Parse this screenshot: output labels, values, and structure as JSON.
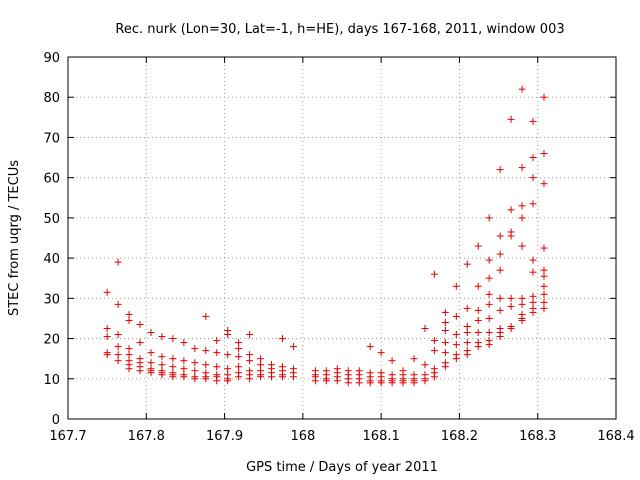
{
  "chart_data": {
    "type": "scatter",
    "title": "Rec. nurk (Lon=30, Lat=-1, h=HE), days 167-168, 2011, window 003",
    "xlabel": "GPS time / Days of year 2011",
    "ylabel": "STEC from uqrg / TECUs",
    "xlim": [
      167.7,
      168.4
    ],
    "ylim": [
      0,
      90
    ],
    "xticks": [
      "167.7",
      "167.8",
      "167.9",
      "168",
      "168.1",
      "168.2",
      "168.3",
      "168.4"
    ],
    "yticks": [
      "0",
      "10",
      "20",
      "30",
      "40",
      "50",
      "60",
      "70",
      "80",
      "90"
    ],
    "xtick_values": [
      167.7,
      167.8,
      167.9,
      168.0,
      168.1,
      168.2,
      168.3,
      168.4
    ],
    "ytick_values": [
      0,
      10,
      20,
      30,
      40,
      50,
      60,
      70,
      80,
      90
    ],
    "grid": true,
    "legend": false,
    "marker": "plus",
    "marker_color": "#e00000",
    "points": [
      [
        167.75,
        31.5
      ],
      [
        167.75,
        22.5
      ],
      [
        167.75,
        20.5
      ],
      [
        167.75,
        16.5
      ],
      [
        167.75,
        16
      ],
      [
        167.764,
        39
      ],
      [
        167.764,
        28.5
      ],
      [
        167.764,
        21
      ],
      [
        167.764,
        18
      ],
      [
        167.764,
        16
      ],
      [
        167.764,
        14.5
      ],
      [
        167.778,
        26
      ],
      [
        167.778,
        24.5
      ],
      [
        167.778,
        17.5
      ],
      [
        167.778,
        16
      ],
      [
        167.778,
        14.5
      ],
      [
        167.778,
        13.5
      ],
      [
        167.778,
        12.5
      ],
      [
        167.792,
        23.5
      ],
      [
        167.792,
        19
      ],
      [
        167.792,
        15
      ],
      [
        167.792,
        14
      ],
      [
        167.792,
        13
      ],
      [
        167.792,
        12
      ],
      [
        167.806,
        21.5
      ],
      [
        167.806,
        16.5
      ],
      [
        167.806,
        14
      ],
      [
        167.806,
        12.5
      ],
      [
        167.806,
        12
      ],
      [
        167.806,
        11.5
      ],
      [
        167.82,
        20.5
      ],
      [
        167.82,
        15.5
      ],
      [
        167.82,
        13.5
      ],
      [
        167.82,
        12
      ],
      [
        167.82,
        11.5
      ],
      [
        167.82,
        11
      ],
      [
        167.834,
        20
      ],
      [
        167.834,
        15
      ],
      [
        167.834,
        13
      ],
      [
        167.834,
        11.5
      ],
      [
        167.834,
        11
      ],
      [
        167.834,
        10.5
      ],
      [
        167.848,
        19
      ],
      [
        167.848,
        14.5
      ],
      [
        167.848,
        12.5
      ],
      [
        167.848,
        11
      ],
      [
        167.848,
        10.5
      ],
      [
        167.862,
        17.5
      ],
      [
        167.862,
        14
      ],
      [
        167.862,
        12
      ],
      [
        167.862,
        10.5
      ],
      [
        167.862,
        10
      ],
      [
        167.876,
        25.5
      ],
      [
        167.876,
        17
      ],
      [
        167.876,
        13.5
      ],
      [
        167.876,
        11.5
      ],
      [
        167.876,
        10.5
      ],
      [
        167.876,
        10
      ],
      [
        167.89,
        19.5
      ],
      [
        167.89,
        16.5
      ],
      [
        167.89,
        13
      ],
      [
        167.89,
        11
      ],
      [
        167.89,
        10.5
      ],
      [
        167.89,
        9.5
      ],
      [
        167.904,
        22
      ],
      [
        167.904,
        21
      ],
      [
        167.904,
        16
      ],
      [
        167.904,
        12.5
      ],
      [
        167.904,
        11
      ],
      [
        167.904,
        10
      ],
      [
        167.904,
        9.5
      ],
      [
        167.918,
        19
      ],
      [
        167.918,
        17.5
      ],
      [
        167.918,
        15.5
      ],
      [
        167.918,
        13
      ],
      [
        167.918,
        11.5
      ],
      [
        167.918,
        10.5
      ],
      [
        167.932,
        21
      ],
      [
        167.932,
        16
      ],
      [
        167.932,
        14.5
      ],
      [
        167.932,
        12
      ],
      [
        167.932,
        11
      ],
      [
        167.932,
        10
      ],
      [
        167.946,
        15
      ],
      [
        167.946,
        13.5
      ],
      [
        167.946,
        12
      ],
      [
        167.946,
        11
      ],
      [
        167.946,
        10.5
      ],
      [
        167.96,
        13.5
      ],
      [
        167.96,
        12.5
      ],
      [
        167.96,
        11.5
      ],
      [
        167.96,
        10.5
      ],
      [
        167.974,
        20
      ],
      [
        167.974,
        13
      ],
      [
        167.974,
        12
      ],
      [
        167.974,
        11
      ],
      [
        167.974,
        10.5
      ],
      [
        167.988,
        18
      ],
      [
        167.988,
        12.5
      ],
      [
        167.988,
        11.5
      ],
      [
        167.988,
        10.5
      ],
      [
        168.016,
        12
      ],
      [
        168.016,
        11
      ],
      [
        168.016,
        10.5
      ],
      [
        168.016,
        9.5
      ],
      [
        168.03,
        12
      ],
      [
        168.03,
        11
      ],
      [
        168.03,
        10
      ],
      [
        168.03,
        9.5
      ],
      [
        168.044,
        12.5
      ],
      [
        168.044,
        11.5
      ],
      [
        168.044,
        10.5
      ],
      [
        168.044,
        9.5
      ],
      [
        168.058,
        12
      ],
      [
        168.058,
        11
      ],
      [
        168.058,
        10
      ],
      [
        168.058,
        9
      ],
      [
        168.072,
        12
      ],
      [
        168.072,
        11
      ],
      [
        168.072,
        10
      ],
      [
        168.072,
        9
      ],
      [
        168.086,
        18
      ],
      [
        168.086,
        11.5
      ],
      [
        168.086,
        10.5
      ],
      [
        168.086,
        9.5
      ],
      [
        168.086,
        9
      ],
      [
        168.1,
        16.5
      ],
      [
        168.1,
        11.5
      ],
      [
        168.1,
        10.5
      ],
      [
        168.1,
        9.5
      ],
      [
        168.1,
        9
      ],
      [
        168.114,
        14.5
      ],
      [
        168.114,
        11
      ],
      [
        168.114,
        10
      ],
      [
        168.114,
        9.5
      ],
      [
        168.114,
        9
      ],
      [
        168.128,
        12
      ],
      [
        168.128,
        11
      ],
      [
        168.128,
        10
      ],
      [
        168.128,
        9.5
      ],
      [
        168.128,
        9
      ],
      [
        168.142,
        15
      ],
      [
        168.142,
        11
      ],
      [
        168.142,
        10
      ],
      [
        168.142,
        9.5
      ],
      [
        168.142,
        9
      ],
      [
        168.156,
        22.5
      ],
      [
        168.156,
        13.5
      ],
      [
        168.156,
        11
      ],
      [
        168.156,
        10
      ],
      [
        168.156,
        9.5
      ],
      [
        168.168,
        36
      ],
      [
        168.168,
        19.5
      ],
      [
        168.168,
        17
      ],
      [
        168.168,
        12.5
      ],
      [
        168.168,
        11.5
      ],
      [
        168.168,
        10.5
      ],
      [
        168.182,
        26.5
      ],
      [
        168.182,
        24
      ],
      [
        168.182,
        22
      ],
      [
        168.182,
        19
      ],
      [
        168.182,
        16.5
      ],
      [
        168.182,
        14
      ],
      [
        168.182,
        13
      ],
      [
        168.196,
        33
      ],
      [
        168.196,
        25.5
      ],
      [
        168.196,
        21
      ],
      [
        168.196,
        18.5
      ],
      [
        168.196,
        16
      ],
      [
        168.196,
        15
      ],
      [
        168.21,
        38.5
      ],
      [
        168.21,
        27.5
      ],
      [
        168.21,
        23
      ],
      [
        168.21,
        21.5
      ],
      [
        168.21,
        19
      ],
      [
        168.21,
        17
      ],
      [
        168.21,
        16
      ],
      [
        168.224,
        43
      ],
      [
        168.224,
        33
      ],
      [
        168.224,
        27
      ],
      [
        168.224,
        24.5
      ],
      [
        168.224,
        21.5
      ],
      [
        168.224,
        19
      ],
      [
        168.224,
        18
      ],
      [
        168.238,
        50
      ],
      [
        168.238,
        39.5
      ],
      [
        168.238,
        35
      ],
      [
        168.238,
        31
      ],
      [
        168.238,
        28.5
      ],
      [
        168.238,
        25
      ],
      [
        168.238,
        21.5
      ],
      [
        168.238,
        19.5
      ],
      [
        168.238,
        18.5
      ],
      [
        168.252,
        62
      ],
      [
        168.252,
        45.5
      ],
      [
        168.252,
        41
      ],
      [
        168.252,
        37
      ],
      [
        168.252,
        30
      ],
      [
        168.252,
        27
      ],
      [
        168.252,
        22.5
      ],
      [
        168.252,
        21.5
      ],
      [
        168.252,
        20.5
      ],
      [
        168.266,
        74.5
      ],
      [
        168.266,
        52
      ],
      [
        168.266,
        46.5
      ],
      [
        168.266,
        45.5
      ],
      [
        168.266,
        30
      ],
      [
        168.266,
        28
      ],
      [
        168.266,
        23
      ],
      [
        168.266,
        22.5
      ],
      [
        168.28,
        82
      ],
      [
        168.28,
        62.5
      ],
      [
        168.28,
        53
      ],
      [
        168.28,
        50
      ],
      [
        168.28,
        43
      ],
      [
        168.28,
        30
      ],
      [
        168.28,
        28.5
      ],
      [
        168.28,
        26
      ],
      [
        168.28,
        25
      ],
      [
        168.28,
        24.5
      ],
      [
        168.294,
        74
      ],
      [
        168.294,
        65
      ],
      [
        168.294,
        60
      ],
      [
        168.294,
        53.5
      ],
      [
        168.294,
        39.5
      ],
      [
        168.294,
        36.5
      ],
      [
        168.294,
        30.5
      ],
      [
        168.294,
        29
      ],
      [
        168.294,
        27.5
      ],
      [
        168.294,
        26.5
      ],
      [
        168.308,
        80
      ],
      [
        168.308,
        66
      ],
      [
        168.308,
        58.5
      ],
      [
        168.308,
        42.5
      ],
      [
        168.308,
        37
      ],
      [
        168.308,
        35.5
      ],
      [
        168.308,
        33
      ],
      [
        168.308,
        31
      ],
      [
        168.308,
        29
      ],
      [
        168.308,
        27.5
      ]
    ]
  }
}
